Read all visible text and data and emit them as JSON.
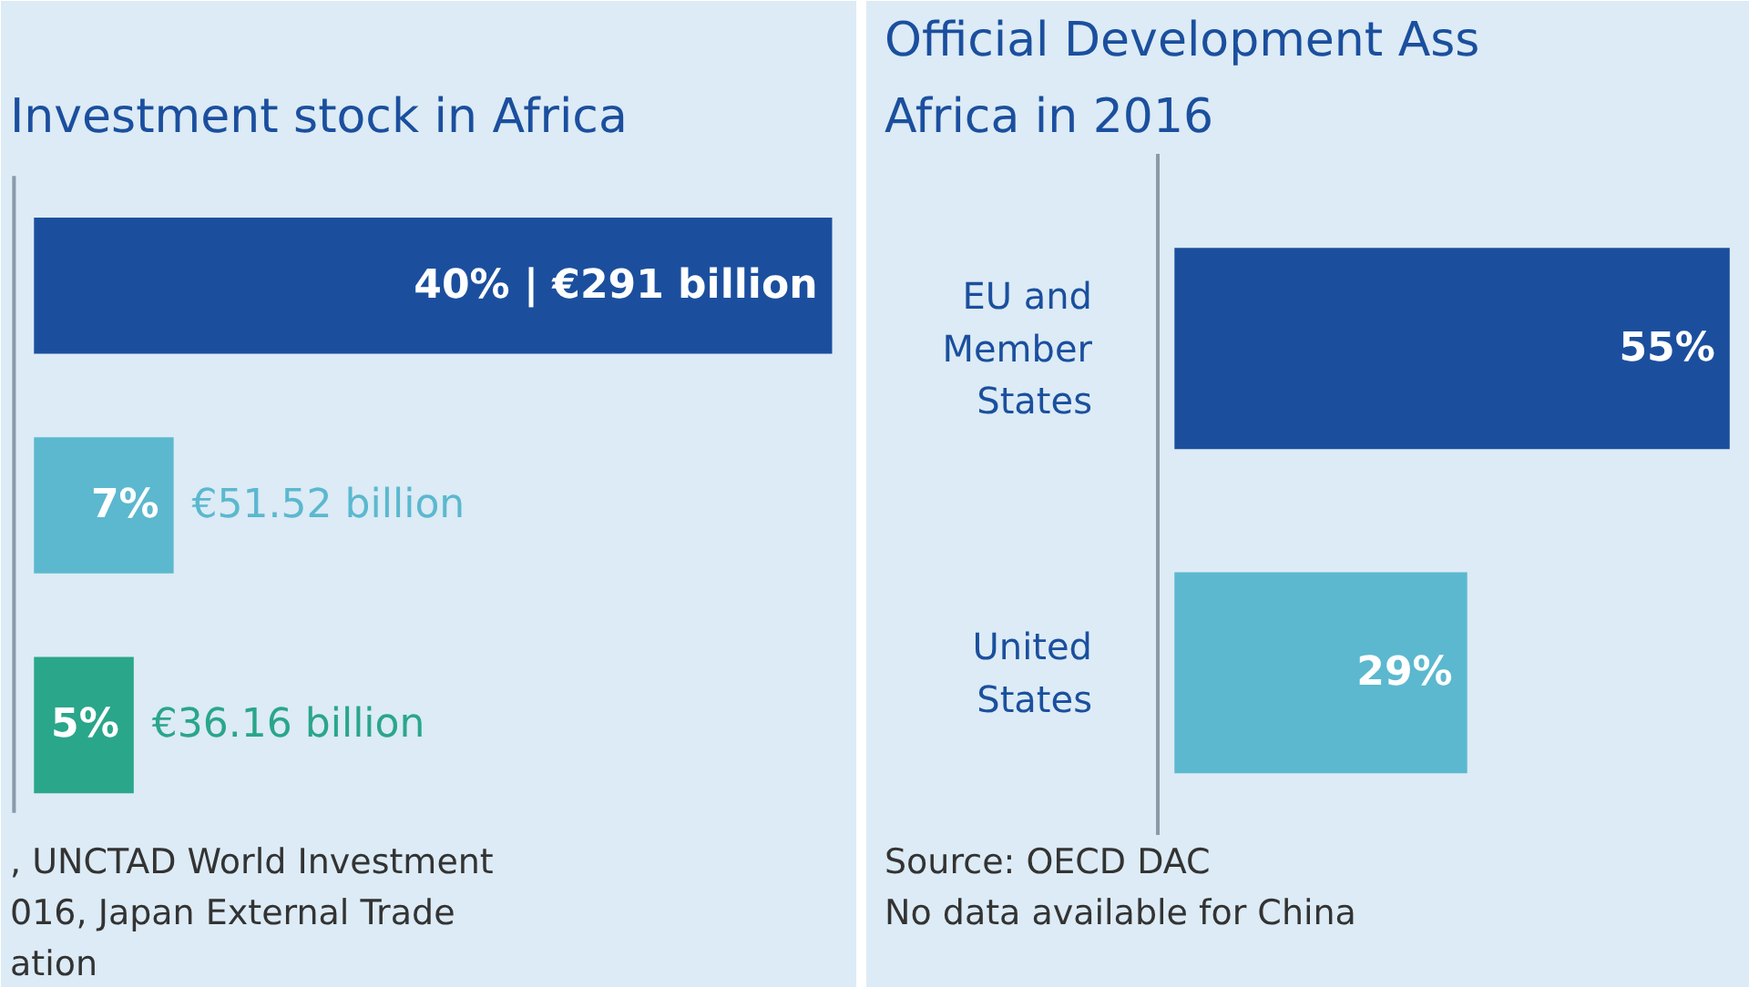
{
  "chart_data": [
    {
      "type": "bar",
      "orientation": "horizontal",
      "title": "Investment stock in Africa",
      "categories": [
        null,
        null,
        null
      ],
      "values": [
        40,
        7,
        5
      ],
      "colors": [
        "#1b4f9e",
        "#5bb8cf",
        "#2aa68a"
      ],
      "value_labels": [
        "40% | €291 billion",
        "7%",
        "5%"
      ],
      "annotations": [
        {
          "text": "€51.52 billion",
          "x": 7
        },
        {
          "text": "€36.16 billion",
          "x": 5
        },
        ", UNCTAD World Investment",
        "016, Japan External Trade",
        "ation"
      ]
    },
    {
      "type": "bar",
      "orientation": "horizontal",
      "title": "Official Development Ass",
      "subtitle": "Africa in 2016",
      "categories": [
        "EU and Member States",
        "United States"
      ],
      "values": [
        55,
        29
      ],
      "colors": [
        "#1b4f9e",
        "#5bb8cf"
      ],
      "value_labels": [
        "55%",
        "29%"
      ],
      "tick_labels": "y",
      "annotations": [
        "Source: OECD DAC",
        "No data available for China"
      ]
    }
  ]
}
